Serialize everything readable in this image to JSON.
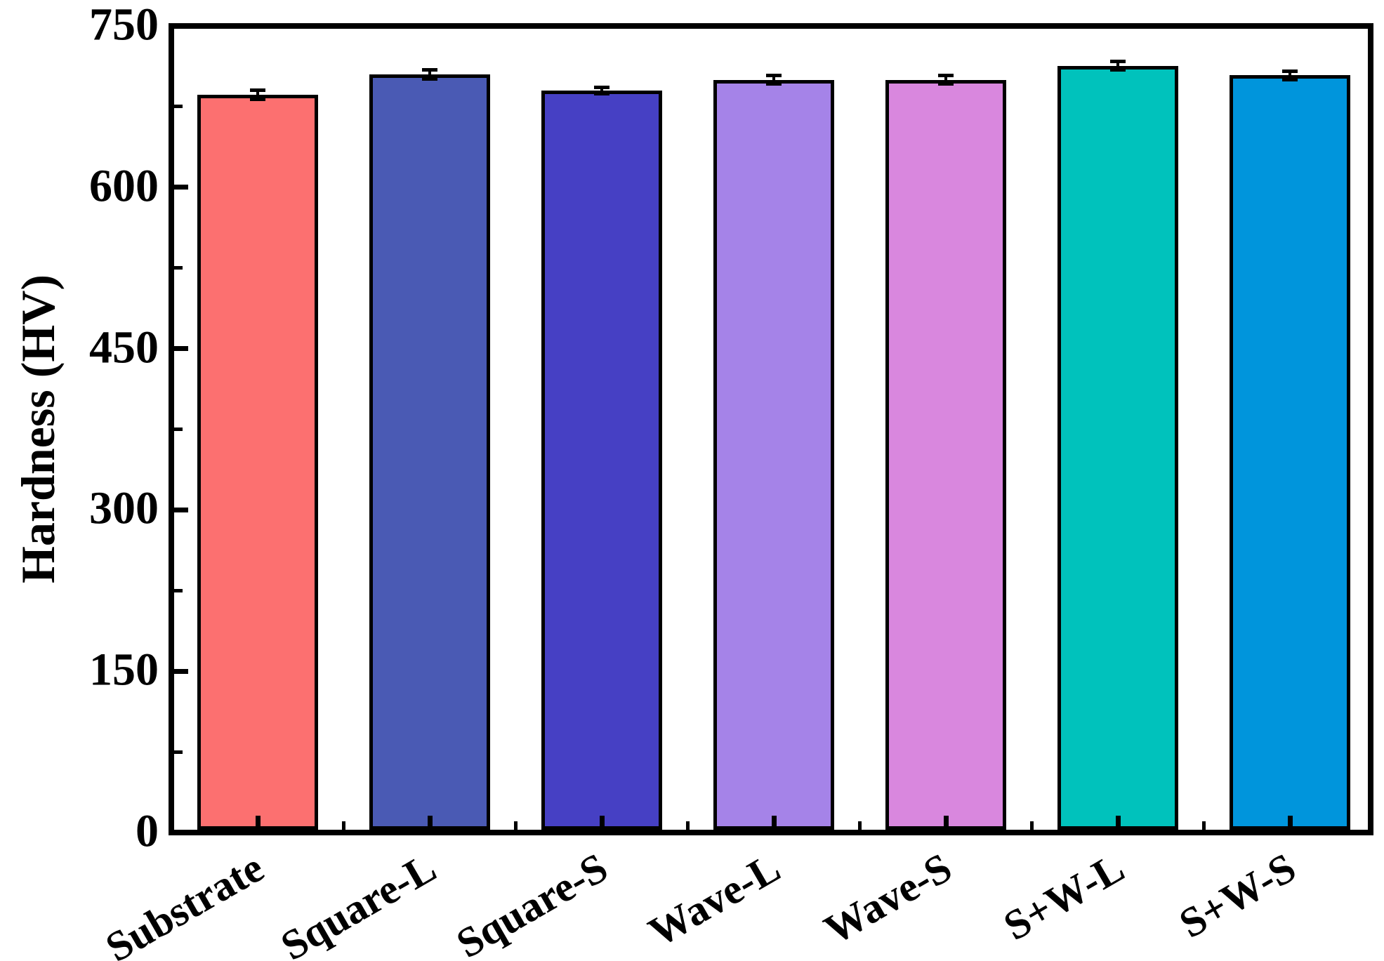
{
  "chart_data": {
    "type": "bar",
    "title": "",
    "xlabel": "",
    "ylabel": "Hardness (HV)",
    "categories": [
      "Substrate",
      "Square-L",
      "Square-S",
      "Wave-L",
      "Wave-S",
      "S+W-L",
      "S+W-S"
    ],
    "values": [
      686,
      705,
      690,
      700,
      700,
      713,
      704
    ],
    "errors": [
      4,
      4,
      3,
      4,
      4,
      4,
      4
    ],
    "bar_colors": [
      "#FC7070",
      "#4A5AB4",
      "#4640C4",
      "#A583E8",
      "#D987DE",
      "#00C2BC",
      "#0095DC"
    ],
    "bar_edge_color": "#000000",
    "error_color": "#000000",
    "axis_color": "#000000",
    "background_color": "#FFFFFF",
    "ylim": [
      0,
      750
    ],
    "yticks": [
      0,
      150,
      300,
      450,
      600,
      750
    ],
    "yticks_minor": [
      75,
      225,
      375,
      525,
      675
    ],
    "grid": false,
    "legend": null
  }
}
